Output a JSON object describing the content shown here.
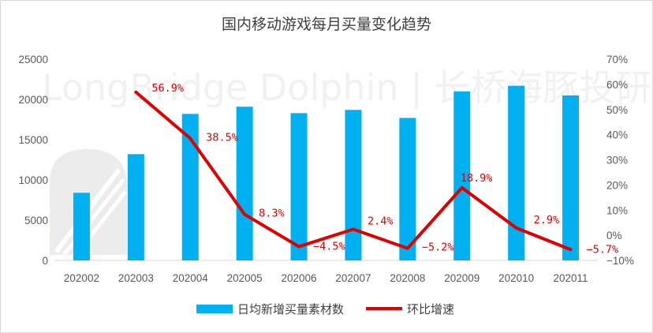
{
  "chart_data": {
    "type": "bar+line",
    "title": "国内移动游戏每月买量变化趋势",
    "categories": [
      "202002",
      "202003",
      "202004",
      "202005",
      "202006",
      "202007",
      "202008",
      "202009",
      "202010",
      "202011"
    ],
    "series": [
      {
        "name": "日均新增买量素材数",
        "type": "bar",
        "axis": "left",
        "color": "#00b0f0",
        "values": [
          8400,
          13200,
          18200,
          19100,
          18300,
          18700,
          17700,
          21000,
          21700,
          20500
        ]
      },
      {
        "name": "环比增速",
        "type": "line",
        "axis": "right",
        "color": "#e00000",
        "values": [
          null,
          56.9,
          38.5,
          8.3,
          -4.5,
          2.4,
          -5.2,
          18.9,
          2.9,
          -5.7
        ],
        "labels": [
          "",
          "56.9%",
          "38.5%",
          "8.3%",
          "−4.5%",
          "2.4%",
          "−5.2%",
          "18.9%",
          "2.9%",
          "−5.7%"
        ]
      }
    ],
    "y_left": {
      "min": 0,
      "max": 25000,
      "step": 5000,
      "ticks": [
        "0",
        "5000",
        "10000",
        "15000",
        "20000",
        "25000"
      ]
    },
    "y_right": {
      "min": -10,
      "max": 70,
      "step": 10,
      "ticks": [
        "−10%",
        "0%",
        "10%",
        "20%",
        "30%",
        "40%",
        "50%",
        "60%",
        "70%"
      ]
    },
    "grid": false,
    "legend_position": "bottom",
    "watermark": "LongBridge Dolphin | 长桥海豚投研"
  }
}
